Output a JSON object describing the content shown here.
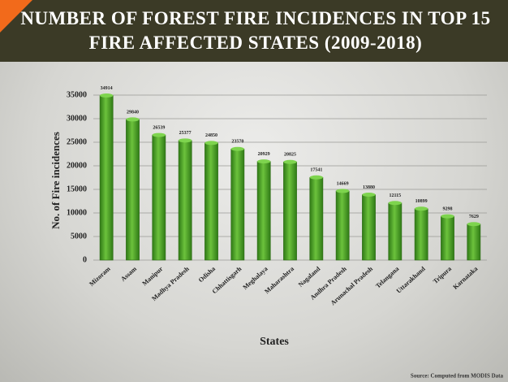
{
  "chart_data": {
    "type": "bar",
    "title": "NUMBER OF FOREST FIRE INCIDENCES IN TOP 15 FIRE AFFECTED STATES (2009-2018)",
    "x_label": "States",
    "y_label": "No. of Fire incidences",
    "source": "Source: Computed from MODIS Data",
    "categories": [
      "Mizoram",
      "Assam",
      "Manipur",
      "Madhya Pradesh",
      "Odisha",
      "Chhattisgarh",
      "Meghalaya",
      "Maharashtra",
      "Nagaland",
      "Andhra Pradesh",
      "Arunachal Pradesh",
      "Telangana",
      "Uttarakhand",
      "Tripura",
      "Karnataka"
    ],
    "values": [
      34914,
      29840,
      26539,
      25377,
      24850,
      23570,
      20929,
      20825,
      17541,
      14669,
      13880,
      12115,
      10899,
      9298,
      7629
    ],
    "color": "#4aa12a",
    "ylim": [
      0,
      35000
    ],
    "yticks": [
      0,
      5000,
      10000,
      15000,
      20000,
      25000,
      30000,
      35000
    ],
    "grid": true
  }
}
